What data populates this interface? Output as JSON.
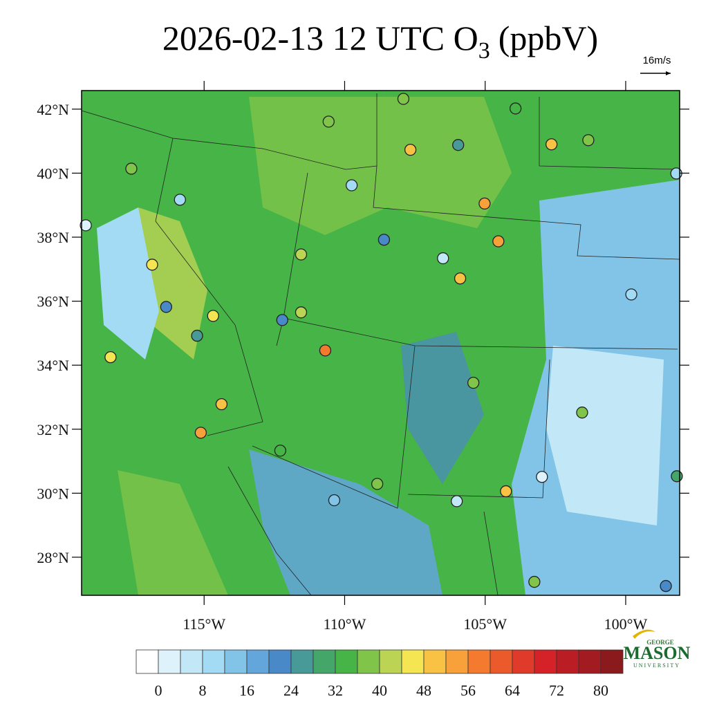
{
  "header": {
    "title_main": "2026-02-13 12 UTC O",
    "title_sub": "3",
    "title_unit": "(ppbV)",
    "wind_scale": "16m/s"
  },
  "extent": {
    "lon": [
      -119.36,
      -98.08
    ],
    "lat": [
      26.81,
      42.58
    ]
  },
  "lon_ticks": [
    {
      "value": -115,
      "label": "115°W"
    },
    {
      "value": -110,
      "label": "110°W"
    },
    {
      "value": -105,
      "label": "105°W"
    },
    {
      "value": -100,
      "label": "100°W"
    }
  ],
  "lat_ticks": [
    {
      "value": 42,
      "label": "42°N"
    },
    {
      "value": 40,
      "label": "40°N"
    },
    {
      "value": 38,
      "label": "38°N"
    },
    {
      "value": 36,
      "label": "36°N"
    },
    {
      "value": 34,
      "label": "34°N"
    },
    {
      "value": 32,
      "label": "32°N"
    },
    {
      "value": 30,
      "label": "30°N"
    },
    {
      "value": 28,
      "label": "28°N"
    }
  ],
  "colorbar": {
    "colors": [
      "#ffffff",
      "#def2fb",
      "#c2e8f8",
      "#a3dbf4",
      "#82c3e8",
      "#63a6dc",
      "#4a89c8",
      "#489a98",
      "#45a66a",
      "#46b446",
      "#80c44a",
      "#bcd454",
      "#f6e552",
      "#f9c244",
      "#f8a03a",
      "#f37a2e",
      "#ea5a2b",
      "#e03b2a",
      "#d52229",
      "#bb1d25",
      "#a11b21",
      "#8a1a1c"
    ],
    "bounds": [
      0,
      4,
      8,
      12,
      16,
      20,
      24,
      28,
      32,
      36,
      40,
      44,
      48,
      52,
      56,
      60,
      64,
      68,
      72,
      76,
      80,
      84
    ],
    "ticks": [
      0,
      8,
      16,
      24,
      32,
      40,
      48,
      56,
      64,
      72,
      80
    ]
  },
  "stations": [
    {
      "lon": -110.57,
      "lat": 41.61,
      "value": 36
    },
    {
      "lon": -107.91,
      "lat": 42.32,
      "value": 36
    },
    {
      "lon": -103.92,
      "lat": 42.02,
      "value": 32
    },
    {
      "lon": -107.66,
      "lat": 40.73,
      "value": 48
    },
    {
      "lon": -102.64,
      "lat": 40.9,
      "value": 48
    },
    {
      "lon": -105.02,
      "lat": 39.05,
      "value": 52
    },
    {
      "lon": -104.53,
      "lat": 37.87,
      "value": 54
    },
    {
      "lon": -110.69,
      "lat": 34.46,
      "value": 58
    },
    {
      "lon": -115.12,
      "lat": 31.89,
      "value": 54
    },
    {
      "lon": -116.85,
      "lat": 37.14,
      "value": 46
    },
    {
      "lon": -105.89,
      "lat": 36.71,
      "value": 48
    },
    {
      "lon": -114.38,
      "lat": 32.78,
      "value": 48
    },
    {
      "lon": -104.26,
      "lat": 30.06,
      "value": 48
    },
    {
      "lon": -101.55,
      "lat": 32.52,
      "value": 38
    },
    {
      "lon": -102.98,
      "lat": 30.51,
      "value": 2
    },
    {
      "lon": -99.8,
      "lat": 36.21,
      "value": 10
    },
    {
      "lon": -98.2,
      "lat": 39.99,
      "value": 8
    },
    {
      "lon": -119.21,
      "lat": 38.37,
      "value": 2
    },
    {
      "lon": -115.86,
      "lat": 39.17,
      "value": 10
    },
    {
      "lon": -115.25,
      "lat": 34.92,
      "value": 24
    },
    {
      "lon": -116.35,
      "lat": 35.82,
      "value": 22
    },
    {
      "lon": -112.22,
      "lat": 35.41,
      "value": 20
    },
    {
      "lon": -110.37,
      "lat": 29.78,
      "value": 12
    },
    {
      "lon": -108.84,
      "lat": 30.29,
      "value": 38
    },
    {
      "lon": -106.01,
      "lat": 29.75,
      "value": 4
    },
    {
      "lon": -103.25,
      "lat": 27.23,
      "value": 38
    },
    {
      "lon": -98.57,
      "lat": 27.1,
      "value": 22
    },
    {
      "lon": -98.18,
      "lat": 30.53,
      "value": 30
    },
    {
      "lon": -111.55,
      "lat": 37.46,
      "value": 40
    },
    {
      "lon": -111.55,
      "lat": 35.65,
      "value": 42
    },
    {
      "lon": -114.68,
      "lat": 35.54,
      "value": 44
    },
    {
      "lon": -108.6,
      "lat": 37.92,
      "value": 22
    },
    {
      "lon": -106.5,
      "lat": 37.34,
      "value": 4
    },
    {
      "lon": -105.96,
      "lat": 40.88,
      "value": 24
    },
    {
      "lon": -101.33,
      "lat": 41.03,
      "value": 36
    },
    {
      "lon": -109.75,
      "lat": 39.62,
      "value": 8
    },
    {
      "lon": -105.42,
      "lat": 33.45,
      "value": 36
    },
    {
      "lon": -112.29,
      "lat": 31.33,
      "value": 34
    },
    {
      "lon": -117.59,
      "lat": 40.14,
      "value": 38
    },
    {
      "lon": -118.33,
      "lat": 34.25,
      "value": 44
    }
  ],
  "logo": {
    "top": "GEORGE",
    "main": "MASON",
    "bottom": "UNIVERSITY"
  }
}
